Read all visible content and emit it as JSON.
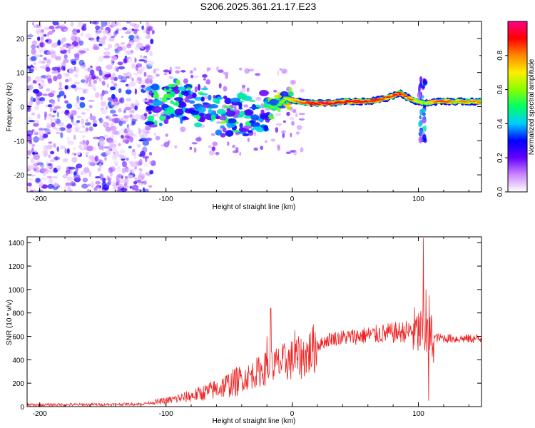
{
  "title": "S206.2025.361.21.17.E23",
  "colors": {
    "axis": "#000000",
    "snr_line": "#ee2222",
    "scatter_base": "#8a2be2",
    "dense_ridge": "#ff3333"
  },
  "chart_data": [
    {
      "type": "heatmap",
      "name": "spectrogram",
      "xlabel": "Height of straight line (km)",
      "ylabel": "Frequency (Hz)",
      "xlim": [
        -210,
        150
      ],
      "ylim": [
        -25,
        25
      ],
      "xticks": [
        -200,
        -100,
        0,
        100
      ],
      "yticks": [
        -20,
        -10,
        0,
        10,
        20
      ],
      "colorbar": {
        "label": "Normalized spectral amplitude",
        "range": [
          0,
          1
        ],
        "ticks": [
          "0.0",
          "0.2",
          "0.4",
          "0.6",
          "0.8"
        ],
        "tick_values": [
          0.0,
          0.2,
          0.4,
          0.6,
          0.8
        ],
        "colormap": [
          "#ffffff",
          "#cc88ff",
          "#6600ff",
          "#0000ff",
          "#00ccff",
          "#00ff66",
          "#88ff00",
          "#ffee00",
          "#ff8800",
          "#ff0000",
          "#ff0088"
        ]
      },
      "noise_region": [
        -210,
        -110
      ],
      "ridge": [
        {
          "x": -120,
          "f": 0.0,
          "a": 0.3
        },
        {
          "x": -105,
          "f": 0.0,
          "a": 0.55
        },
        {
          "x": -95,
          "f": 1.5,
          "a": 0.5
        },
        {
          "x": -85,
          "f": 2.0,
          "a": 0.45
        },
        {
          "x": -75,
          "f": 0.5,
          "a": 0.45
        },
        {
          "x": -65,
          "f": -1.0,
          "a": 0.5
        },
        {
          "x": -55,
          "f": -2.5,
          "a": 0.5
        },
        {
          "x": -45,
          "f": -1.5,
          "a": 0.45
        },
        {
          "x": -35,
          "f": -3.0,
          "a": 0.45
        },
        {
          "x": -25,
          "f": -1.0,
          "a": 0.4
        },
        {
          "x": -15,
          "f": -1.0,
          "a": 0.55
        },
        {
          "x": -5,
          "f": 2.5,
          "a": 0.65
        },
        {
          "x": 5,
          "f": 1.5,
          "a": 0.8
        },
        {
          "x": 15,
          "f": 1.0,
          "a": 0.9
        },
        {
          "x": 30,
          "f": 1.0,
          "a": 0.95
        },
        {
          "x": 45,
          "f": 1.5,
          "a": 0.9
        },
        {
          "x": 60,
          "f": 1.5,
          "a": 0.9
        },
        {
          "x": 75,
          "f": 2.5,
          "a": 0.85
        },
        {
          "x": 85,
          "f": 4.0,
          "a": 0.9
        },
        {
          "x": 95,
          "f": 2.0,
          "a": 0.8
        },
        {
          "x": 105,
          "f": 1.0,
          "a": 0.6
        },
        {
          "x": 115,
          "f": 1.5,
          "a": 0.85
        },
        {
          "x": 130,
          "f": 1.5,
          "a": 0.8
        },
        {
          "x": 150,
          "f": 1.5,
          "a": 0.8
        }
      ]
    },
    {
      "type": "line",
      "name": "snr",
      "xlabel": "Height of straight line (km)",
      "ylabel": "SNR (10 * v/v)",
      "xlim": [
        -210,
        150
      ],
      "ylim": [
        0,
        1450
      ],
      "xticks": [
        -200,
        -100,
        0,
        100
      ],
      "yticks": [
        0,
        200,
        400,
        600,
        800,
        1000,
        1200,
        1400
      ],
      "envelope": [
        {
          "x": -210,
          "y": 15
        },
        {
          "x": -150,
          "y": 18
        },
        {
          "x": -120,
          "y": 22
        },
        {
          "x": -100,
          "y": 50
        },
        {
          "x": -80,
          "y": 90
        },
        {
          "x": -60,
          "y": 150
        },
        {
          "x": -40,
          "y": 230
        },
        {
          "x": -20,
          "y": 330
        },
        {
          "x": 0,
          "y": 400
        },
        {
          "x": 10,
          "y": 430
        },
        {
          "x": 20,
          "y": 520
        },
        {
          "x": 30,
          "y": 580
        },
        {
          "x": 50,
          "y": 600
        },
        {
          "x": 70,
          "y": 620
        },
        {
          "x": 90,
          "y": 640
        },
        {
          "x": 100,
          "y": 640
        },
        {
          "x": 110,
          "y": 590
        },
        {
          "x": 130,
          "y": 580
        },
        {
          "x": 150,
          "y": 580
        }
      ],
      "spikes": [
        {
          "x": -17,
          "y": 840
        },
        {
          "x": -20,
          "y": 600
        },
        {
          "x": 2,
          "y": 650
        },
        {
          "x": 99,
          "y": 770
        },
        {
          "x": 104,
          "y": 1440
        },
        {
          "x": 106,
          "y": 1000
        },
        {
          "x": 108,
          "y": 50
        },
        {
          "x": 108.5,
          "y": 950
        }
      ]
    }
  ]
}
